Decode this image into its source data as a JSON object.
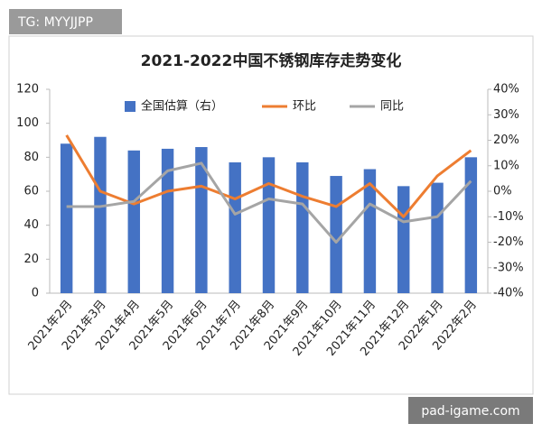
{
  "watermarks": [
    "TG: MYYJJPP",
    "pad-igame.com"
  ],
  "chart_data": {
    "type": "bar-line",
    "title": "2021-2022中国不锈钢库存走势变化",
    "categories": [
      "2021年2月",
      "2021年3月",
      "2021年4月",
      "2021年5月",
      "2021年6月",
      "2021年7月",
      "2021年8月",
      "2021年9月",
      "2021年10月",
      "2021年11月",
      "2021年12月",
      "2022年1月",
      "2022年2月"
    ],
    "series": [
      {
        "name": "全国估算（右）",
        "type": "bar",
        "color": "#4472c4",
        "values": [
          88,
          92,
          84,
          85,
          86,
          77,
          80,
          77,
          69,
          73,
          63,
          65,
          80
        ]
      },
      {
        "name": "环比",
        "type": "line",
        "axis": "y2",
        "color": "#ed7d31",
        "values": [
          22,
          0,
          -5,
          0,
          2,
          -3,
          3,
          -2,
          -6,
          3,
          -10,
          6,
          16
        ]
      },
      {
        "name": "同比",
        "type": "line",
        "axis": "y2",
        "color": "#a5a5a5",
        "values": [
          -6,
          -6,
          -4,
          8,
          11,
          -9,
          -3,
          -5,
          -20,
          -5,
          -12,
          -10,
          4
        ]
      }
    ],
    "ylim": [
      0,
      120
    ],
    "yticks": [
      0,
      20,
      40,
      60,
      80,
      100,
      120
    ],
    "y2lim": [
      -40,
      40
    ],
    "y2ticks": [
      {
        "value": -40,
        "label": "-40%"
      },
      {
        "value": -30,
        "label": "-30%"
      },
      {
        "value": -20,
        "label": "-20%"
      },
      {
        "value": -10,
        "label": "-10%"
      },
      {
        "value": 0,
        "label": "0%"
      },
      {
        "value": 10,
        "label": "10%"
      },
      {
        "value": 20,
        "label": "20%"
      },
      {
        "value": 30,
        "label": "30%"
      },
      {
        "value": 40,
        "label": "40%"
      }
    ],
    "grid": false,
    "legend": "top"
  }
}
